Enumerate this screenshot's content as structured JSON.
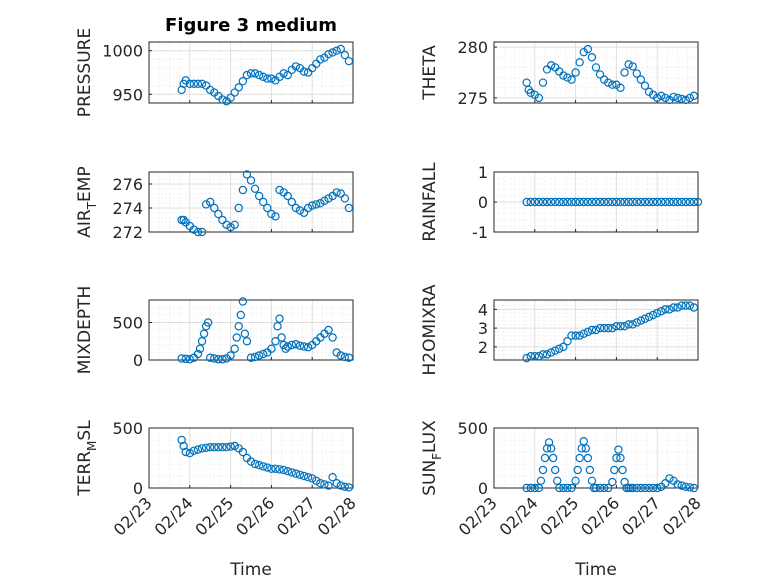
{
  "figure": {
    "title": "Figure 3 medium",
    "background": "#ffffff"
  },
  "style": {
    "marker_color": "#0072BD",
    "marker": "circle"
  },
  "chart_data": [
    {
      "type": "scatter",
      "ylabel": "PRESSURE",
      "xlabel": "",
      "ylim": [
        940,
        1010
      ],
      "yticks": [
        950,
        1000
      ],
      "xlim": [
        0,
        5
      ],
      "xticks": [
        0,
        1,
        2,
        3,
        4,
        5
      ],
      "xticklabels": [],
      "grid": true,
      "minor_grid": true,
      "x": [
        0.8,
        0.85,
        0.9,
        1.0,
        1.1,
        1.2,
        1.3,
        1.4,
        1.5,
        1.6,
        1.7,
        1.8,
        1.9,
        2.0,
        2.1,
        2.2,
        2.3,
        2.4,
        2.5,
        2.6,
        2.7,
        2.8,
        2.9,
        3.0,
        3.1,
        3.2,
        3.3,
        3.4,
        3.5,
        3.6,
        3.7,
        3.8,
        3.9,
        4.0,
        4.1,
        4.2,
        4.3,
        4.4,
        4.5,
        4.6,
        4.7,
        4.8,
        4.9
      ],
      "y": [
        955,
        962,
        966,
        962,
        962,
        962,
        962,
        960,
        955,
        952,
        948,
        944,
        942,
        946,
        952,
        958,
        965,
        972,
        974,
        974,
        972,
        970,
        968,
        968,
        966,
        970,
        974,
        972,
        978,
        982,
        980,
        976,
        975,
        980,
        985,
        990,
        992,
        996,
        998,
        1000,
        1002,
        995,
        988
      ]
    },
    {
      "type": "scatter",
      "ylabel": "THETA",
      "xlabel": "",
      "ylim": [
        274.5,
        280.5
      ],
      "yticks": [
        275,
        280
      ],
      "xlim": [
        0,
        5
      ],
      "xticks": [
        0,
        1,
        2,
        3,
        4,
        5
      ],
      "xticklabels": [],
      "grid": true,
      "minor_grid": true,
      "x": [
        0.8,
        0.85,
        0.9,
        1.0,
        1.1,
        1.2,
        1.3,
        1.4,
        1.5,
        1.6,
        1.7,
        1.8,
        1.9,
        2.0,
        2.1,
        2.2,
        2.3,
        2.4,
        2.5,
        2.6,
        2.7,
        2.8,
        2.9,
        3.0,
        3.1,
        3.2,
        3.3,
        3.4,
        3.5,
        3.6,
        3.7,
        3.8,
        3.9,
        4.0,
        4.1,
        4.2,
        4.3,
        4.4,
        4.5,
        4.6,
        4.7,
        4.8,
        4.9
      ],
      "y": [
        276.5,
        275.8,
        275.5,
        275.3,
        275.0,
        276.5,
        277.8,
        278.2,
        278.0,
        277.6,
        277.2,
        277.0,
        276.8,
        277.5,
        278.5,
        279.5,
        279.8,
        279.0,
        278.0,
        277.3,
        276.8,
        276.5,
        276.3,
        276.3,
        276.0,
        277.5,
        278.3,
        278.1,
        277.4,
        276.8,
        276.2,
        275.6,
        275.3,
        275.0,
        275.2,
        275.0,
        274.8,
        275.1,
        275.0,
        274.9,
        274.8,
        275.0,
        275.2
      ]
    },
    {
      "type": "scatter",
      "ylabel": "AIR_TEMP",
      "xlabel": "",
      "ylim": [
        272,
        277
      ],
      "yticks": [
        272,
        274,
        276
      ],
      "xlim": [
        0,
        5
      ],
      "xticks": [
        0,
        1,
        2,
        3,
        4,
        5
      ],
      "xticklabels": [],
      "grid": true,
      "minor_grid": true,
      "x": [
        0.8,
        0.85,
        0.9,
        1.0,
        1.1,
        1.2,
        1.3,
        1.4,
        1.5,
        1.6,
        1.7,
        1.8,
        1.9,
        2.0,
        2.1,
        2.2,
        2.3,
        2.4,
        2.5,
        2.6,
        2.7,
        2.8,
        2.9,
        3.0,
        3.1,
        3.2,
        3.3,
        3.4,
        3.5,
        3.6,
        3.7,
        3.8,
        3.9,
        4.0,
        4.1,
        4.2,
        4.3,
        4.4,
        4.5,
        4.6,
        4.7,
        4.8,
        4.9
      ],
      "y": [
        273.0,
        273.0,
        272.8,
        272.5,
        272.2,
        272.0,
        272.0,
        274.3,
        274.5,
        274.0,
        273.5,
        273.0,
        272.6,
        272.4,
        272.6,
        274.0,
        275.5,
        276.8,
        276.3,
        275.6,
        275.0,
        274.5,
        274.0,
        273.5,
        273.3,
        275.5,
        275.3,
        275.0,
        274.5,
        274.0,
        273.8,
        273.6,
        274.0,
        274.2,
        274.3,
        274.4,
        274.6,
        274.8,
        275.0,
        275.3,
        275.2,
        274.8,
        274.0
      ]
    },
    {
      "type": "scatter",
      "ylabel": "RAINFALL",
      "xlabel": "",
      "ylim": [
        -1,
        1
      ],
      "yticks": [
        -1,
        0,
        1
      ],
      "xlim": [
        0,
        5
      ],
      "xticks": [
        0,
        1,
        2,
        3,
        4,
        5
      ],
      "xticklabels": [],
      "grid": true,
      "minor_grid": true,
      "x": [
        0.8,
        0.9,
        1.0,
        1.1,
        1.2,
        1.3,
        1.4,
        1.5,
        1.6,
        1.7,
        1.8,
        1.9,
        2.0,
        2.1,
        2.2,
        2.3,
        2.4,
        2.5,
        2.6,
        2.7,
        2.8,
        2.9,
        3.0,
        3.1,
        3.2,
        3.3,
        3.4,
        3.5,
        3.6,
        3.7,
        3.8,
        3.9,
        4.0,
        4.1,
        4.2,
        4.3,
        4.4,
        4.5,
        4.6,
        4.7,
        4.8,
        4.9,
        5.0
      ],
      "y": [
        0,
        0,
        0,
        0,
        0,
        0,
        0,
        0,
        0,
        0,
        0,
        0,
        0,
        0,
        0,
        0,
        0,
        0,
        0,
        0,
        0,
        0,
        0,
        0,
        0,
        0,
        0,
        0,
        0,
        0,
        0,
        0,
        0,
        0,
        0,
        0,
        0,
        0,
        0,
        0,
        0,
        0,
        0
      ]
    },
    {
      "type": "scatter",
      "ylabel": "MIXDEPTH",
      "xlabel": "",
      "ylim": [
        0,
        800
      ],
      "yticks": [
        0,
        500
      ],
      "xlim": [
        0,
        5
      ],
      "xticks": [
        0,
        1,
        2,
        3,
        4,
        5
      ],
      "xticklabels": [],
      "grid": true,
      "minor_grid": true,
      "x": [
        0.8,
        0.9,
        1.0,
        1.1,
        1.2,
        1.25,
        1.3,
        1.35,
        1.4,
        1.45,
        1.5,
        1.6,
        1.7,
        1.8,
        1.9,
        2.0,
        2.1,
        2.15,
        2.2,
        2.25,
        2.3,
        2.35,
        2.4,
        2.5,
        2.6,
        2.7,
        2.8,
        2.9,
        3.0,
        3.1,
        3.15,
        3.2,
        3.25,
        3.3,
        3.35,
        3.4,
        3.5,
        3.6,
        3.7,
        3.8,
        3.9,
        4.0,
        4.1,
        4.2,
        4.3,
        4.4,
        4.5,
        4.6,
        4.7,
        4.8,
        4.9
      ],
      "y": [
        20,
        15,
        10,
        30,
        80,
        150,
        250,
        350,
        450,
        500,
        30,
        20,
        10,
        10,
        20,
        60,
        150,
        300,
        450,
        600,
        780,
        350,
        250,
        30,
        40,
        60,
        80,
        100,
        150,
        250,
        450,
        550,
        300,
        200,
        150,
        180,
        200,
        210,
        190,
        180,
        170,
        200,
        250,
        300,
        350,
        400,
        300,
        100,
        60,
        40,
        30
      ]
    },
    {
      "type": "scatter",
      "ylabel": "H2OMIXRA",
      "xlabel": "",
      "ylim": [
        1.3,
        4.5
      ],
      "yticks": [
        2,
        3,
        4
      ],
      "xlim": [
        0,
        5
      ],
      "xticks": [
        0,
        1,
        2,
        3,
        4,
        5
      ],
      "xticklabels": [],
      "grid": true,
      "minor_grid": true,
      "x": [
        0.8,
        0.9,
        1.0,
        1.1,
        1.2,
        1.3,
        1.4,
        1.5,
        1.6,
        1.7,
        1.8,
        1.9,
        2.0,
        2.1,
        2.2,
        2.3,
        2.4,
        2.5,
        2.6,
        2.7,
        2.8,
        2.9,
        3.0,
        3.1,
        3.2,
        3.3,
        3.4,
        3.5,
        3.6,
        3.7,
        3.8,
        3.9,
        4.0,
        4.1,
        4.2,
        4.3,
        4.4,
        4.5,
        4.6,
        4.7,
        4.8,
        4.9
      ],
      "y": [
        1.4,
        1.5,
        1.5,
        1.5,
        1.6,
        1.6,
        1.7,
        1.8,
        1.9,
        2.0,
        2.3,
        2.6,
        2.6,
        2.6,
        2.7,
        2.8,
        2.9,
        2.9,
        3.0,
        3.0,
        3.0,
        3.0,
        3.1,
        3.1,
        3.1,
        3.2,
        3.2,
        3.3,
        3.4,
        3.5,
        3.6,
        3.7,
        3.8,
        3.9,
        4.0,
        4.0,
        4.1,
        4.1,
        4.2,
        4.2,
        4.2,
        4.1
      ]
    },
    {
      "type": "scatter",
      "ylabel": "TERR_MSL",
      "xlabel": "Time",
      "ylim": [
        0,
        500
      ],
      "yticks": [
        0,
        500
      ],
      "xlim": [
        0,
        5
      ],
      "xticks": [
        0,
        1,
        2,
        3,
        4,
        5
      ],
      "xticklabels": [
        "02/23",
        "02/24",
        "02/25",
        "02/26",
        "02/27",
        "02/28"
      ],
      "grid": true,
      "minor_grid": true,
      "x": [
        0.8,
        0.85,
        0.9,
        1.0,
        1.1,
        1.2,
        1.3,
        1.4,
        1.5,
        1.6,
        1.7,
        1.8,
        1.9,
        2.0,
        2.1,
        2.2,
        2.3,
        2.4,
        2.5,
        2.6,
        2.7,
        2.8,
        2.9,
        3.0,
        3.1,
        3.2,
        3.3,
        3.4,
        3.5,
        3.6,
        3.7,
        3.8,
        3.9,
        4.0,
        4.1,
        4.2,
        4.3,
        4.4,
        4.5,
        4.6,
        4.7,
        4.8,
        4.9
      ],
      "y": [
        400,
        350,
        300,
        290,
        310,
        320,
        330,
        335,
        340,
        340,
        340,
        340,
        340,
        345,
        350,
        330,
        300,
        250,
        220,
        200,
        190,
        180,
        170,
        160,
        160,
        155,
        150,
        140,
        130,
        120,
        110,
        100,
        90,
        80,
        60,
        40,
        30,
        20,
        90,
        40,
        20,
        10,
        5
      ]
    },
    {
      "type": "scatter",
      "ylabel": "SUN_FLUX",
      "xlabel": "Time",
      "ylim": [
        0,
        500
      ],
      "yticks": [
        0,
        500
      ],
      "xlim": [
        0,
        5
      ],
      "xticks": [
        0,
        1,
        2,
        3,
        4,
        5
      ],
      "xticklabels": [
        "02/23",
        "02/24",
        "02/25",
        "02/26",
        "02/27",
        "02/28"
      ],
      "grid": true,
      "minor_grid": true,
      "x": [
        0.8,
        0.9,
        1.0,
        1.1,
        1.15,
        1.2,
        1.25,
        1.3,
        1.35,
        1.4,
        1.45,
        1.5,
        1.55,
        1.6,
        1.7,
        1.8,
        1.9,
        2.0,
        2.05,
        2.1,
        2.15,
        2.2,
        2.25,
        2.3,
        2.35,
        2.4,
        2.45,
        2.5,
        2.6,
        2.7,
        2.8,
        2.9,
        2.95,
        3.0,
        3.05,
        3.1,
        3.15,
        3.2,
        3.25,
        3.3,
        3.35,
        3.4,
        3.5,
        3.6,
        3.7,
        3.8,
        3.9,
        4.0,
        4.1,
        4.2,
        4.3,
        4.4,
        4.5,
        4.6,
        4.7,
        4.8,
        4.9
      ],
      "y": [
        0,
        0,
        0,
        0,
        60,
        150,
        250,
        330,
        380,
        330,
        250,
        150,
        60,
        0,
        0,
        0,
        0,
        60,
        150,
        250,
        330,
        390,
        330,
        250,
        150,
        60,
        0,
        0,
        0,
        0,
        0,
        50,
        150,
        250,
        320,
        250,
        150,
        50,
        0,
        0,
        0,
        0,
        0,
        0,
        0,
        0,
        0,
        0,
        10,
        40,
        80,
        60,
        30,
        20,
        10,
        5,
        0
      ]
    }
  ]
}
